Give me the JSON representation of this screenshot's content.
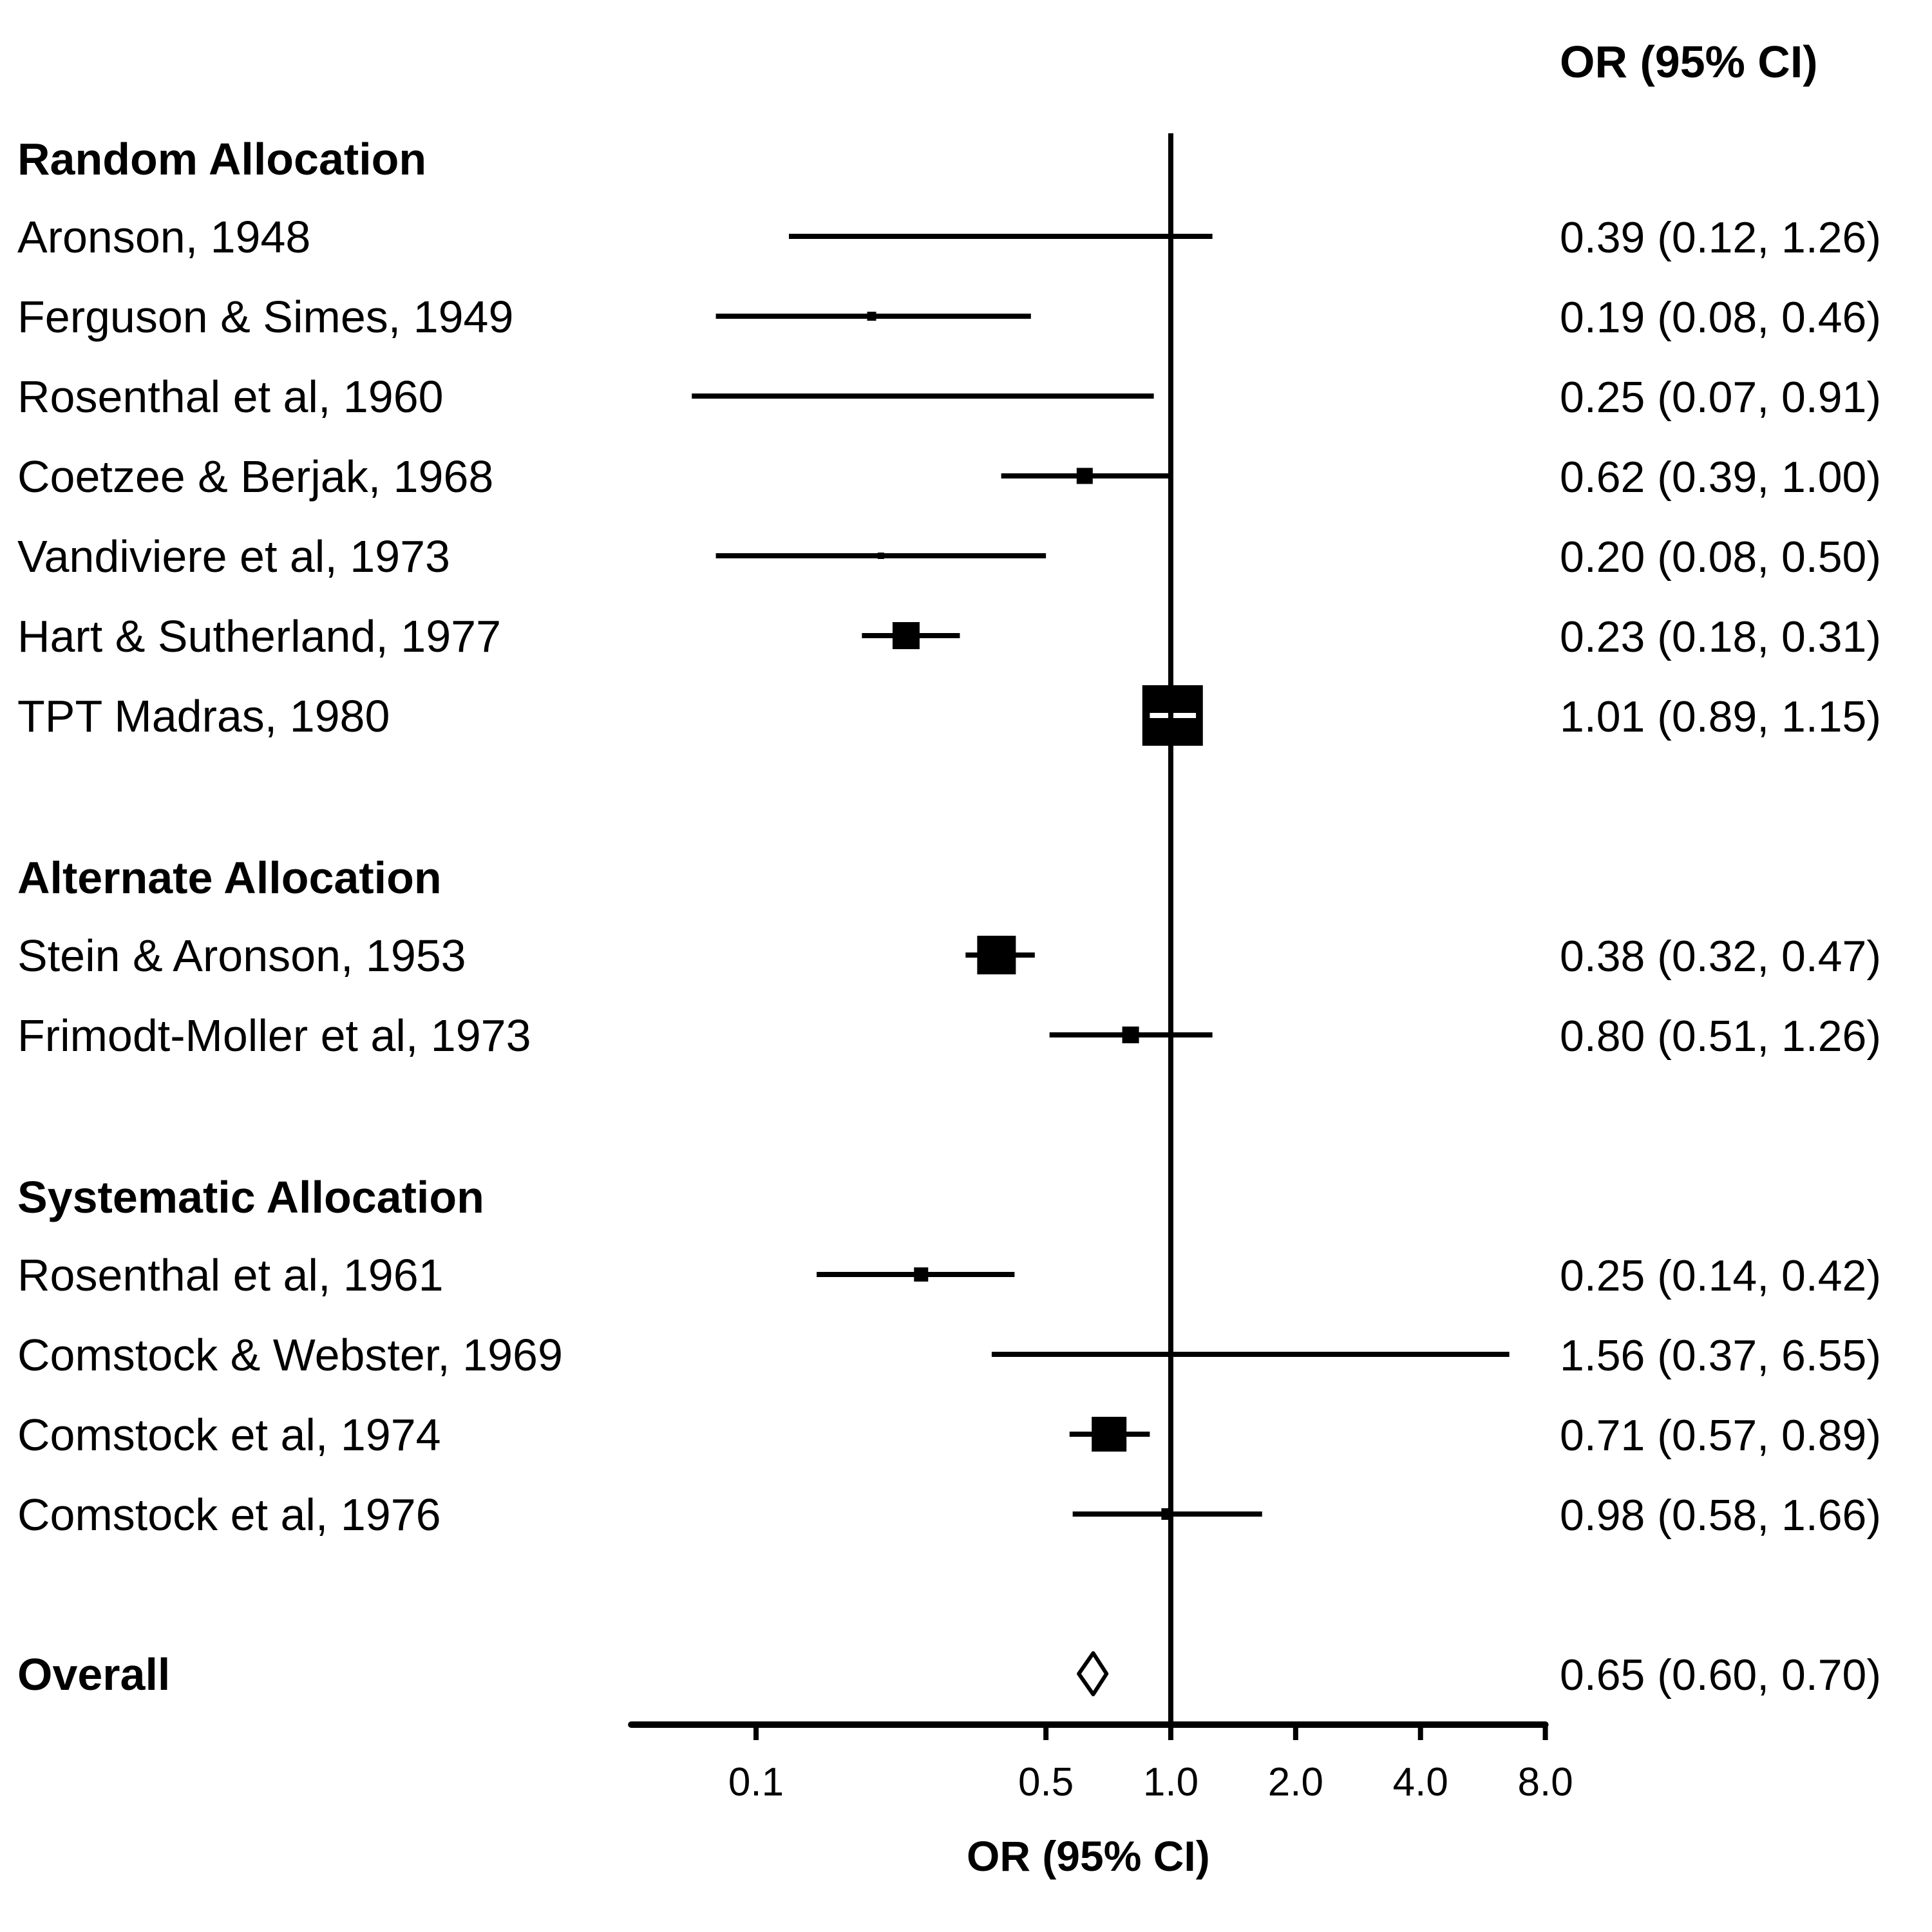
{
  "chart_data": {
    "type": "forest",
    "title": "",
    "column_header": "OR (95% CI)",
    "xlabel": "OR (95% CI)",
    "x_scale": "log",
    "xlim": [
      0.05,
      8.0
    ],
    "xticks": [
      0.1,
      0.5,
      1.0,
      2.0,
      4.0,
      8.0
    ],
    "xtick_labels": [
      "0.1",
      "0.5",
      "1.0",
      "2.0",
      "4.0",
      "8.0"
    ],
    "reference_line": 1.0,
    "rows": [
      {
        "kind": "header",
        "label": "Random Allocation"
      },
      {
        "kind": "study",
        "label": "Aronson, 1948",
        "or": 0.39,
        "lower": 0.12,
        "upper": 1.26,
        "text": "0.39 (0.12, 1.26)",
        "weight": 6
      },
      {
        "kind": "study",
        "label": "Ferguson & Simes, 1949",
        "or": 0.19,
        "lower": 0.08,
        "upper": 0.46,
        "text": "0.19 (0.08, 0.46)",
        "weight": 14
      },
      {
        "kind": "study",
        "label": "Rosenthal et al, 1960",
        "or": 0.25,
        "lower": 0.07,
        "upper": 0.91,
        "text": "0.25 (0.07, 0.91)",
        "weight": 4
      },
      {
        "kind": "study",
        "label": "Coetzee & Berjak, 1968",
        "or": 0.62,
        "lower": 0.39,
        "upper": 1.0,
        "text": "0.62 (0.39, 1.00)",
        "weight": 25
      },
      {
        "kind": "study",
        "label": "Vandiviere et al, 1973",
        "or": 0.2,
        "lower": 0.08,
        "upper": 0.5,
        "text": "0.20 (0.08, 0.50)",
        "weight": 10
      },
      {
        "kind": "study",
        "label": "Hart & Sutherland, 1977",
        "or": 0.23,
        "lower": 0.18,
        "upper": 0.31,
        "text": "0.23 (0.18, 0.31)",
        "weight": 42
      },
      {
        "kind": "study",
        "label": "TPT Madras, 1980",
        "or": 1.01,
        "lower": 0.89,
        "upper": 1.15,
        "text": "1.01 (0.89, 1.15)",
        "weight": 94
      },
      {
        "kind": "spacer"
      },
      {
        "kind": "header",
        "label": "Alternate Allocation"
      },
      {
        "kind": "study",
        "label": "Stein & Aronson, 1953",
        "or": 0.38,
        "lower": 0.32,
        "upper": 0.47,
        "text": "0.38 (0.32, 0.47)",
        "weight": 60
      },
      {
        "kind": "study",
        "label": "Frimodt-Moller et al, 1973",
        "or": 0.8,
        "lower": 0.51,
        "upper": 1.26,
        "text": "0.80 (0.51, 1.26)",
        "weight": 26
      },
      {
        "kind": "spacer"
      },
      {
        "kind": "header",
        "label": "Systematic Allocation"
      },
      {
        "kind": "study",
        "label": "Rosenthal et al, 1961",
        "or": 0.25,
        "lower": 0.14,
        "upper": 0.42,
        "text": "0.25 (0.14, 0.42)",
        "weight": 22
      },
      {
        "kind": "study",
        "label": "Comstock & Webster, 1969",
        "or": 1.56,
        "lower": 0.37,
        "upper": 6.55,
        "text": "1.56 (0.37, 6.55)",
        "weight": 5
      },
      {
        "kind": "study",
        "label": "Comstock et al, 1974",
        "or": 0.71,
        "lower": 0.57,
        "upper": 0.89,
        "text": "0.71 (0.57, 0.89)",
        "weight": 54
      },
      {
        "kind": "study",
        "label": "Comstock et al, 1976",
        "or": 0.98,
        "lower": 0.58,
        "upper": 1.66,
        "text": "0.98 (0.58, 1.66)",
        "weight": 18
      },
      {
        "kind": "spacer"
      },
      {
        "kind": "overall",
        "label": "Overall",
        "or": 0.65,
        "lower": 0.6,
        "upper": 0.7,
        "text": "0.65 (0.60, 0.70)"
      }
    ]
  }
}
